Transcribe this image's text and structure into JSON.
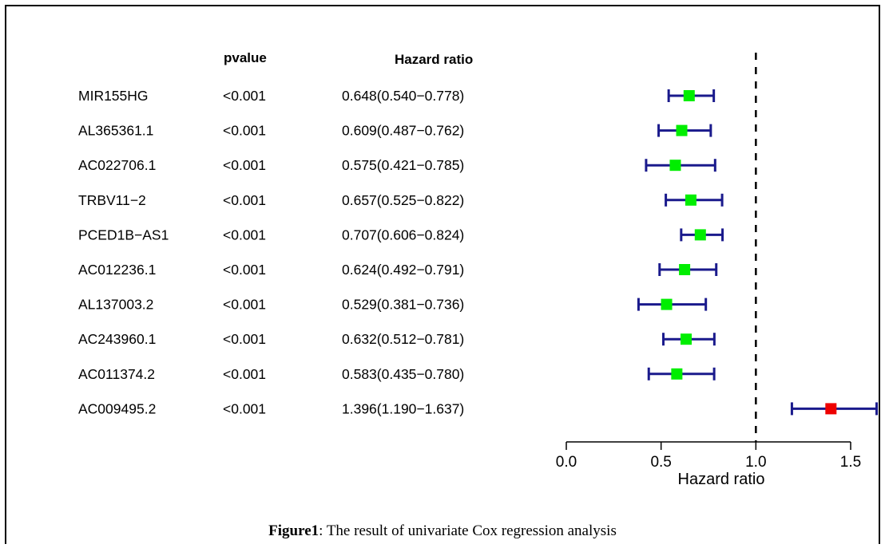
{
  "chart_data": {
    "type": "forest",
    "columns": {
      "pvalue_header": "pvalue",
      "hr_header": "Hazard ratio"
    },
    "rows": [
      {
        "name": "MIR155HG",
        "pvalue": "<0.001",
        "hr_text": "0.648(0.540−0.778)",
        "hr": 0.648,
        "lower": 0.54,
        "upper": 0.778,
        "color": "#00ee00"
      },
      {
        "name": "AL365361.1",
        "pvalue": "<0.001",
        "hr_text": "0.609(0.487−0.762)",
        "hr": 0.609,
        "lower": 0.487,
        "upper": 0.762,
        "color": "#00ee00"
      },
      {
        "name": "AC022706.1",
        "pvalue": "<0.001",
        "hr_text": "0.575(0.421−0.785)",
        "hr": 0.575,
        "lower": 0.421,
        "upper": 0.785,
        "color": "#00ee00"
      },
      {
        "name": "TRBV11−2",
        "pvalue": "<0.001",
        "hr_text": "0.657(0.525−0.822)",
        "hr": 0.657,
        "lower": 0.525,
        "upper": 0.822,
        "color": "#00ee00"
      },
      {
        "name": "PCED1B−AS1",
        "pvalue": "<0.001",
        "hr_text": "0.707(0.606−0.824)",
        "hr": 0.707,
        "lower": 0.606,
        "upper": 0.824,
        "color": "#00ee00"
      },
      {
        "name": "AC012236.1",
        "pvalue": "<0.001",
        "hr_text": "0.624(0.492−0.791)",
        "hr": 0.624,
        "lower": 0.492,
        "upper": 0.791,
        "color": "#00ee00"
      },
      {
        "name": "AL137003.2",
        "pvalue": "<0.001",
        "hr_text": "0.529(0.381−0.736)",
        "hr": 0.529,
        "lower": 0.381,
        "upper": 0.736,
        "color": "#00ee00"
      },
      {
        "name": "AC243960.1",
        "pvalue": "<0.001",
        "hr_text": "0.632(0.512−0.781)",
        "hr": 0.632,
        "lower": 0.512,
        "upper": 0.781,
        "color": "#00ee00"
      },
      {
        "name": "AC011374.2",
        "pvalue": "<0.001",
        "hr_text": "0.583(0.435−0.780)",
        "hr": 0.583,
        "lower": 0.435,
        "upper": 0.78,
        "color": "#00ee00"
      },
      {
        "name": "AC009495.2",
        "pvalue": "<0.001",
        "hr_text": "1.396(1.190−1.637)",
        "hr": 1.396,
        "lower": 1.19,
        "upper": 1.637,
        "color": "#ee0000"
      }
    ],
    "reference_line": 1.0,
    "xlim": [
      0.0,
      1.5
    ],
    "xticks": [
      "0.0",
      "0.5",
      "1.0",
      "1.5"
    ],
    "xlabel": "Hazard ratio",
    "ci_color": "#1a1a8c"
  },
  "caption": {
    "label": "Figure1",
    "text": ": The result of univariate Cox regression analysis"
  }
}
